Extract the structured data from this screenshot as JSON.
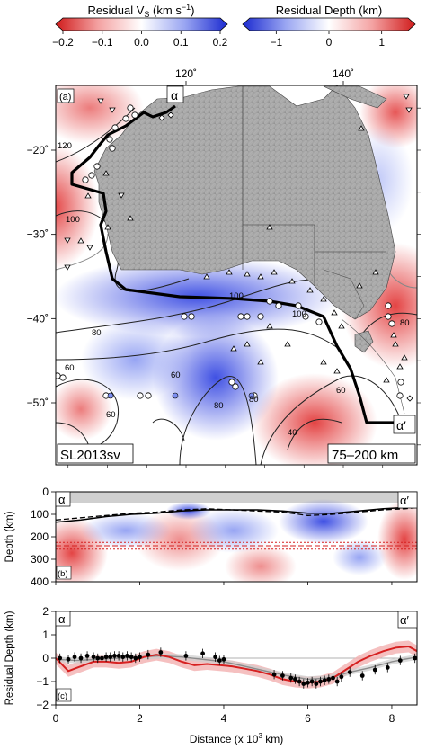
{
  "colorbars": [
    {
      "title": "Residual V",
      "title_sub": "S",
      "title_unit": " (km s",
      "title_sup": "−1",
      "title_end": ")",
      "ticks": [
        "−0.2",
        "−0.1",
        "0.0",
        "0.1",
        "0.2"
      ],
      "tick_values": [
        -0.2,
        -0.1,
        0.0,
        0.1,
        0.2
      ],
      "colors": [
        "#d01c1c",
        "#f4a3a3",
        "#ffffff",
        "#9aa6f2",
        "#1c2bd0"
      ]
    },
    {
      "title": "Residual Depth (km)",
      "ticks": [
        "−1",
        "0",
        "1"
      ],
      "tick_values": [
        -1,
        0,
        1
      ],
      "range": [
        -1.5,
        1.5
      ],
      "colors": [
        "#1c2bd0",
        "#9aa6f2",
        "#ffffff",
        "#f4a3a3",
        "#d01c1c"
      ]
    }
  ],
  "map": {
    "panel_label": "(a)",
    "top_ticks": [
      "120˚",
      "140˚"
    ],
    "left_ticks": [
      "−20˚",
      "−30˚",
      "−40˚",
      "−50˚"
    ],
    "lon_values": [
      120,
      140
    ],
    "lat_values": [
      -20,
      -30,
      -40,
      -50
    ],
    "model_label": "SL2013sv",
    "depth_range_label": "75–200 km",
    "start_label": "α",
    "end_label": "α′",
    "contour_labels": [
      "120",
      "100",
      "80",
      "60",
      "60",
      "60",
      "80",
      "100",
      "100",
      "80",
      "60",
      "40",
      "80"
    ]
  },
  "chart_data": [
    {
      "type": "heatmap",
      "panel": "(b)",
      "ylabel": "Depth (km)",
      "y_ticks": [
        "0",
        "100",
        "200",
        "300",
        "400"
      ],
      "y_values": [
        0,
        100,
        200,
        300,
        400
      ],
      "x_values": [
        0,
        2,
        4,
        6,
        8
      ],
      "xlim": [
        0,
        8.6
      ],
      "ylim": [
        0,
        400
      ],
      "start_label": "α",
      "end_label": "α′",
      "lab_solid": [
        [
          0,
          135
        ],
        [
          0.6,
          125
        ],
        [
          1.2,
          110
        ],
        [
          1.8,
          100
        ],
        [
          2.4,
          95
        ],
        [
          3,
          85
        ],
        [
          3.6,
          80
        ],
        [
          4.2,
          80
        ],
        [
          4.8,
          80
        ],
        [
          5.4,
          85
        ],
        [
          6,
          95
        ],
        [
          6.6,
          95
        ],
        [
          7.2,
          85
        ],
        [
          7.8,
          75
        ],
        [
          8.3,
          70
        ],
        [
          8.6,
          65
        ]
      ],
      "lab_dashed": [
        [
          0,
          125
        ],
        [
          0.6,
          115
        ],
        [
          1.2,
          105
        ],
        [
          1.8,
          95
        ],
        [
          2.4,
          90
        ],
        [
          3,
          80
        ],
        [
          3.6,
          75
        ],
        [
          4.2,
          80
        ],
        [
          4.8,
          85
        ],
        [
          5.4,
          90
        ],
        [
          6,
          105
        ],
        [
          6.6,
          100
        ],
        [
          7.2,
          90
        ],
        [
          7.8,
          80
        ],
        [
          8.3,
          75
        ],
        [
          8.6,
          70
        ]
      ],
      "ref_depths": [
        225,
        240,
        255
      ]
    },
    {
      "type": "line",
      "panel": "(c)",
      "xlabel": "Distance (x 10",
      "xlabel_sup": "3",
      "xlabel_end": " km)",
      "ylabel": "Residual Depth (km)",
      "x_ticks": [
        "0",
        "2",
        "4",
        "6",
        "8"
      ],
      "x_values": [
        0,
        2,
        4,
        6,
        8
      ],
      "y_ticks": [
        "−2",
        "−1",
        "0",
        "1",
        "2"
      ],
      "y_values": [
        -2,
        -1,
        0,
        1,
        2
      ],
      "xlim": [
        0,
        8.6
      ],
      "ylim": [
        -2,
        2
      ],
      "start_label": "α",
      "end_label": "α′",
      "series": [
        {
          "color": "#d62020",
          "x": [
            0,
            0.3,
            0.6,
            0.9,
            1.2,
            1.5,
            1.8,
            2.1,
            2.4,
            2.7,
            3.0,
            3.3,
            3.6,
            3.9,
            4.2,
            4.5,
            4.8,
            5.1,
            5.4,
            5.7,
            6.0,
            6.3,
            6.6,
            6.9,
            7.2,
            7.5,
            7.8,
            8.1,
            8.4,
            8.6
          ],
          "y": [
            0.0,
            -0.55,
            -0.35,
            -0.15,
            -0.15,
            -0.2,
            -0.15,
            0.05,
            0.15,
            0.05,
            -0.15,
            -0.3,
            -0.25,
            -0.3,
            -0.35,
            -0.45,
            -0.55,
            -0.7,
            -0.9,
            -1.0,
            -1.05,
            -1.0,
            -0.85,
            -0.5,
            -0.15,
            0.1,
            0.3,
            0.45,
            0.5,
            0.3
          ],
          "band_halfwidth": 0.25
        },
        {
          "color": "#8c8c8c",
          "x": [
            0,
            0.5,
            1.0,
            1.5,
            2.0,
            2.5,
            3.0,
            3.5,
            4.0,
            4.5,
            5.0,
            5.5,
            6.0,
            6.5,
            7.0,
            7.5,
            8.0,
            8.6
          ],
          "y": [
            -0.05,
            -0.1,
            -0.05,
            0.0,
            0.05,
            0.1,
            0.05,
            -0.05,
            -0.15,
            -0.35,
            -0.55,
            -0.75,
            -0.9,
            -0.85,
            -0.6,
            -0.4,
            -0.15,
            0.05
          ],
          "band_halfwidth": 0.12
        }
      ],
      "points": [
        {
          "x": 0.1,
          "y": 0.0
        },
        {
          "x": 0.3,
          "y": -0.05
        },
        {
          "x": 0.45,
          "y": 0.05
        },
        {
          "x": 0.6,
          "y": 0.0
        },
        {
          "x": 0.75,
          "y": 0.1
        },
        {
          "x": 0.9,
          "y": 0.05
        },
        {
          "x": 1.0,
          "y": 0.0
        },
        {
          "x": 1.1,
          "y": 0.0
        },
        {
          "x": 1.2,
          "y": 0.05
        },
        {
          "x": 1.3,
          "y": 0.05
        },
        {
          "x": 1.4,
          "y": 0.1
        },
        {
          "x": 1.5,
          "y": 0.1
        },
        {
          "x": 1.6,
          "y": 0.05
        },
        {
          "x": 1.7,
          "y": 0.1
        },
        {
          "x": 1.8,
          "y": 0.05
        },
        {
          "x": 1.9,
          "y": 0.0
        },
        {
          "x": 2.0,
          "y": 0.05
        },
        {
          "x": 2.2,
          "y": 0.15
        },
        {
          "x": 2.5,
          "y": 0.25
        },
        {
          "x": 3.1,
          "y": 0.1
        },
        {
          "x": 3.5,
          "y": 0.2
        },
        {
          "x": 3.8,
          "y": 0.05
        },
        {
          "x": 3.9,
          "y": -0.1
        },
        {
          "x": 4.0,
          "y": -0.05
        },
        {
          "x": 5.2,
          "y": -0.7
        },
        {
          "x": 5.4,
          "y": -0.75
        },
        {
          "x": 5.6,
          "y": -0.85
        },
        {
          "x": 5.7,
          "y": -0.9
        },
        {
          "x": 5.8,
          "y": -1.0
        },
        {
          "x": 5.9,
          "y": -1.1
        },
        {
          "x": 6.0,
          "y": -1.05
        },
        {
          "x": 6.1,
          "y": -1.0
        },
        {
          "x": 6.2,
          "y": -1.1
        },
        {
          "x": 6.3,
          "y": -1.0
        },
        {
          "x": 6.4,
          "y": -0.95
        },
        {
          "x": 6.5,
          "y": -0.9
        },
        {
          "x": 6.6,
          "y": -0.85
        },
        {
          "x": 6.7,
          "y": -1.0
        },
        {
          "x": 6.8,
          "y": -0.8
        },
        {
          "x": 7.0,
          "y": -0.6
        },
        {
          "x": 7.3,
          "y": -0.75
        },
        {
          "x": 7.6,
          "y": -0.5
        },
        {
          "x": 7.9,
          "y": -0.4
        },
        {
          "x": 8.2,
          "y": -0.1
        },
        {
          "x": 8.55,
          "y": 0.0
        }
      ]
    }
  ]
}
